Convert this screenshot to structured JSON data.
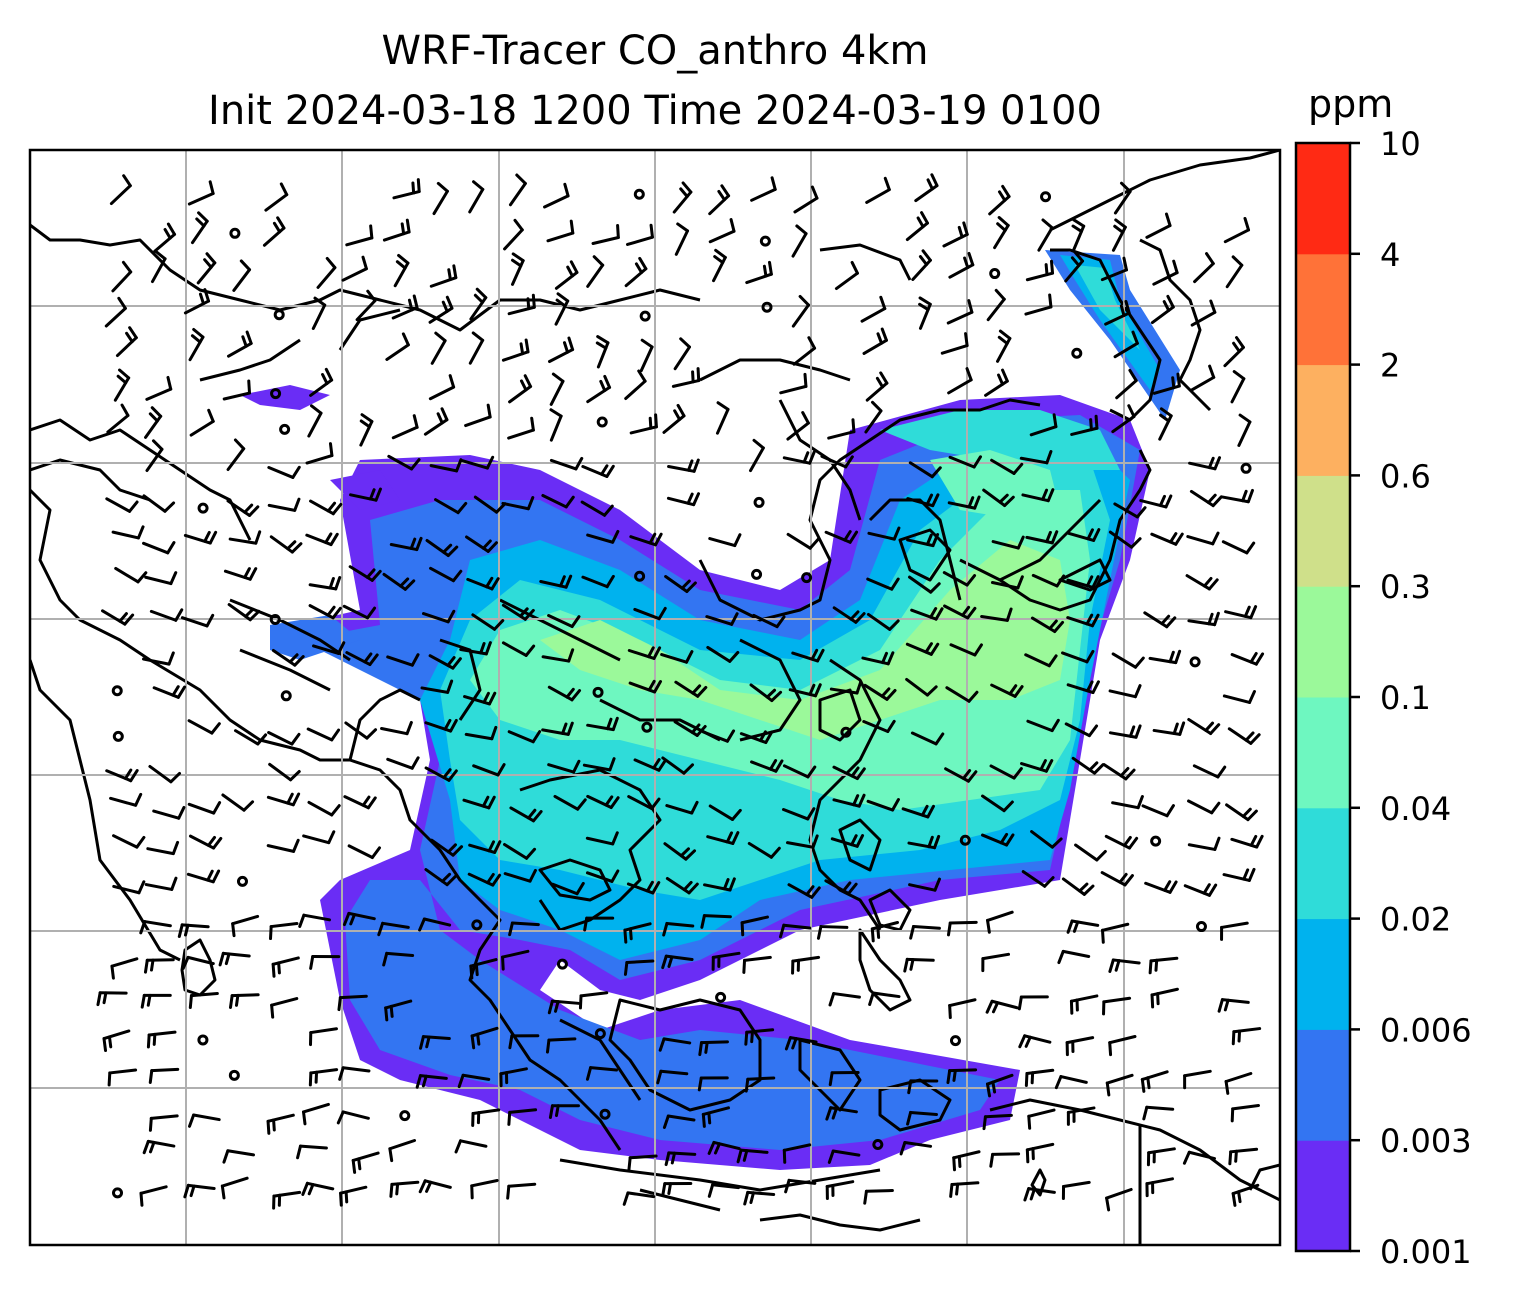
{
  "title": {
    "line1": "WRF-Tracer CO_anthro 4km",
    "line2": "Init 2024-03-18 1200 Time 2024-03-19 0100"
  },
  "colorbar": {
    "unit": "ppm",
    "levels": [
      "0.001",
      "0.003",
      "0.006",
      "0.02",
      "0.04",
      "0.1",
      "0.3",
      "0.6",
      "2",
      "4",
      "10"
    ],
    "colors": [
      "#6a2df5",
      "#3375f2",
      "#00b2ee",
      "#2fdcd9",
      "#6ef7c0",
      "#9bf99a",
      "#cfe08a",
      "#fdb060",
      "#ff7238",
      "#ff2a14"
    ]
  },
  "map": {
    "ocean_color": "#ffffff",
    "grid_color": "#b0b0b0",
    "coast_color": "#000000"
  }
}
